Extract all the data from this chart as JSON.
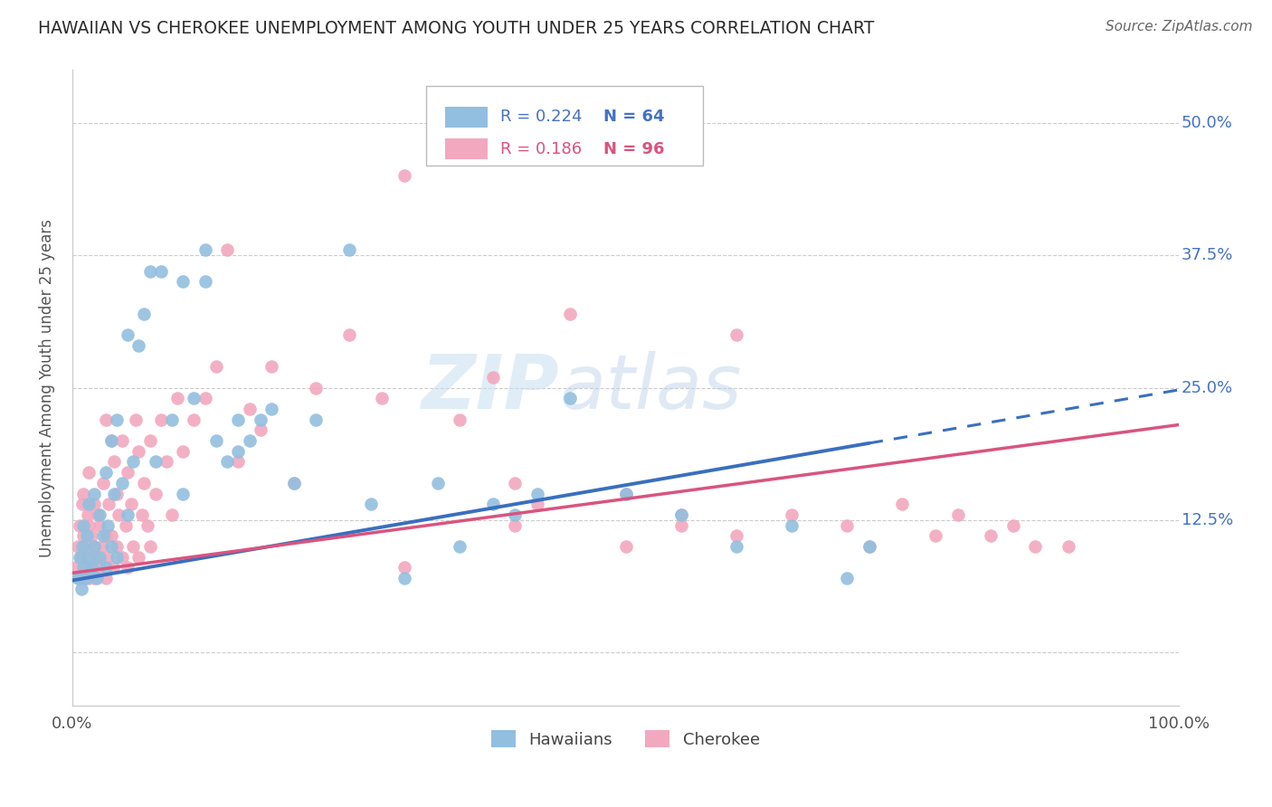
{
  "title": "HAWAIIAN VS CHEROKEE UNEMPLOYMENT AMONG YOUTH UNDER 25 YEARS CORRELATION CHART",
  "source": "Source: ZipAtlas.com",
  "ylabel": "Unemployment Among Youth under 25 years",
  "yticks": [
    0.0,
    0.125,
    0.25,
    0.375,
    0.5
  ],
  "ytick_labels": [
    "",
    "12.5%",
    "25.0%",
    "37.5%",
    "50.0%"
  ],
  "R_hawaiian": 0.224,
  "N_hawaiian": 64,
  "R_cherokee": 0.186,
  "N_cherokee": 96,
  "legend_label1": "Hawaiians",
  "legend_label2": "Cherokee",
  "color_hawaiian": "#92bfdf",
  "color_cherokee": "#f2a8bf",
  "trend_color_hawaiian": "#3a6fbf",
  "trend_color_cherokee": "#d9547e",
  "background_color": "#ffffff",
  "watermark_zip": "ZIP",
  "watermark_atlas": "atlas",
  "hawaiian_x": [
    0.005,
    0.007,
    0.008,
    0.009,
    0.01,
    0.01,
    0.012,
    0.013,
    0.015,
    0.015,
    0.018,
    0.02,
    0.02,
    0.022,
    0.025,
    0.025,
    0.028,
    0.03,
    0.03,
    0.032,
    0.035,
    0.035,
    0.038,
    0.04,
    0.04,
    0.045,
    0.05,
    0.05,
    0.055,
    0.06,
    0.065,
    0.07,
    0.075,
    0.08,
    0.09,
    0.1,
    0.1,
    0.11,
    0.12,
    0.12,
    0.13,
    0.14,
    0.15,
    0.15,
    0.16,
    0.17,
    0.18,
    0.2,
    0.22,
    0.25,
    0.27,
    0.3,
    0.33,
    0.35,
    0.38,
    0.4,
    0.42,
    0.45,
    0.5,
    0.55,
    0.6,
    0.65,
    0.7,
    0.72
  ],
  "hawaiian_y": [
    0.07,
    0.09,
    0.06,
    0.1,
    0.08,
    0.12,
    0.07,
    0.11,
    0.09,
    0.14,
    0.08,
    0.1,
    0.15,
    0.07,
    0.09,
    0.13,
    0.11,
    0.08,
    0.17,
    0.12,
    0.1,
    0.2,
    0.15,
    0.09,
    0.22,
    0.16,
    0.13,
    0.3,
    0.18,
    0.29,
    0.32,
    0.36,
    0.18,
    0.36,
    0.22,
    0.15,
    0.35,
    0.24,
    0.35,
    0.38,
    0.2,
    0.18,
    0.19,
    0.22,
    0.2,
    0.22,
    0.23,
    0.16,
    0.22,
    0.38,
    0.14,
    0.07,
    0.16,
    0.1,
    0.14,
    0.13,
    0.15,
    0.24,
    0.15,
    0.13,
    0.1,
    0.12,
    0.07,
    0.1
  ],
  "cherokee_x": [
    0.003,
    0.005,
    0.006,
    0.007,
    0.008,
    0.009,
    0.01,
    0.01,
    0.01,
    0.012,
    0.013,
    0.014,
    0.015,
    0.015,
    0.015,
    0.016,
    0.017,
    0.018,
    0.02,
    0.02,
    0.02,
    0.022,
    0.023,
    0.025,
    0.025,
    0.027,
    0.028,
    0.03,
    0.03,
    0.03,
    0.032,
    0.033,
    0.035,
    0.035,
    0.037,
    0.038,
    0.04,
    0.04,
    0.042,
    0.045,
    0.045,
    0.048,
    0.05,
    0.05,
    0.053,
    0.055,
    0.057,
    0.06,
    0.06,
    0.063,
    0.065,
    0.068,
    0.07,
    0.07,
    0.075,
    0.08,
    0.085,
    0.09,
    0.095,
    0.1,
    0.11,
    0.12,
    0.13,
    0.14,
    0.15,
    0.16,
    0.17,
    0.18,
    0.2,
    0.22,
    0.25,
    0.28,
    0.3,
    0.35,
    0.38,
    0.4,
    0.42,
    0.45,
    0.5,
    0.55,
    0.6,
    0.65,
    0.7,
    0.72,
    0.75,
    0.78,
    0.8,
    0.83,
    0.85,
    0.87,
    0.9,
    0.55,
    0.6,
    0.3,
    0.4,
    0.5
  ],
  "cherokee_y": [
    0.08,
    0.1,
    0.07,
    0.12,
    0.09,
    0.14,
    0.07,
    0.11,
    0.15,
    0.08,
    0.1,
    0.13,
    0.07,
    0.12,
    0.17,
    0.09,
    0.11,
    0.08,
    0.07,
    0.1,
    0.14,
    0.09,
    0.13,
    0.08,
    0.12,
    0.1,
    0.16,
    0.07,
    0.11,
    0.22,
    0.09,
    0.14,
    0.11,
    0.2,
    0.08,
    0.18,
    0.1,
    0.15,
    0.13,
    0.09,
    0.2,
    0.12,
    0.08,
    0.17,
    0.14,
    0.1,
    0.22,
    0.09,
    0.19,
    0.13,
    0.16,
    0.12,
    0.1,
    0.2,
    0.15,
    0.22,
    0.18,
    0.13,
    0.24,
    0.19,
    0.22,
    0.24,
    0.27,
    0.38,
    0.18,
    0.23,
    0.21,
    0.27,
    0.16,
    0.25,
    0.3,
    0.24,
    0.45,
    0.22,
    0.26,
    0.16,
    0.14,
    0.32,
    0.15,
    0.13,
    0.11,
    0.13,
    0.12,
    0.1,
    0.14,
    0.11,
    0.13,
    0.11,
    0.12,
    0.1,
    0.1,
    0.12,
    0.3,
    0.08,
    0.12,
    0.1
  ],
  "xlim": [
    0.0,
    1.0
  ],
  "ylim": [
    -0.05,
    0.55
  ],
  "trend_h_x0": 0.0,
  "trend_h_y0": 0.068,
  "trend_h_x1": 1.0,
  "trend_h_y1": 0.248,
  "trend_h_solid_end": 0.72,
  "trend_c_x0": 0.0,
  "trend_c_y0": 0.075,
  "trend_c_x1": 1.0,
  "trend_c_y1": 0.215
}
